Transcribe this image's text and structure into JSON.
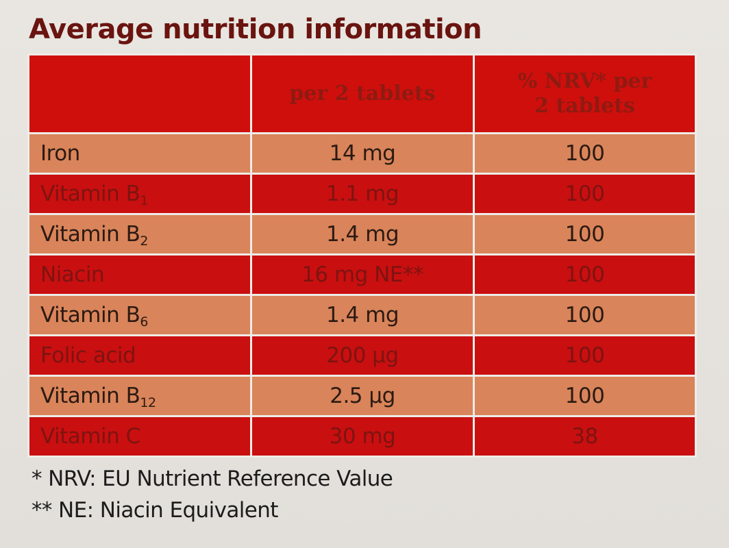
{
  "title": "Average nutrition information",
  "table": {
    "headers": [
      "",
      "per 2 tablets",
      "% NRV* per 2 tablets"
    ],
    "rows": [
      {
        "nutrient": "Iron",
        "sub": "",
        "amount": "14 mg",
        "nrv": "100"
      },
      {
        "nutrient": "Vitamin B",
        "sub": "1",
        "amount": "1.1 mg",
        "nrv": "100"
      },
      {
        "nutrient": "Vitamin B",
        "sub": "2",
        "amount": "1.4 mg",
        "nrv": "100"
      },
      {
        "nutrient": "Niacin",
        "sub": "",
        "amount": "16 mg NE**",
        "nrv": "100"
      },
      {
        "nutrient": "Vitamin B",
        "sub": "6",
        "amount": "1.4 mg",
        "nrv": "100"
      },
      {
        "nutrient": "Folic acid",
        "sub": "",
        "amount": "200 µg",
        "nrv": "100"
      },
      {
        "nutrient": "Vitamin B",
        "sub": "12",
        "amount": "2.5 µg",
        "nrv": "100"
      },
      {
        "nutrient": "Vitamin C",
        "sub": "",
        "amount": "30 mg",
        "nrv": "38"
      }
    ]
  },
  "footnotes": [
    "* NRV: EU Nutrient Reference Value",
    "** NE: Niacin Equivalent"
  ],
  "colors": {
    "header_red": "#cf0f0c",
    "row_light": "#d9845a",
    "row_dark": "#c90f10",
    "title": "#6a1410"
  }
}
